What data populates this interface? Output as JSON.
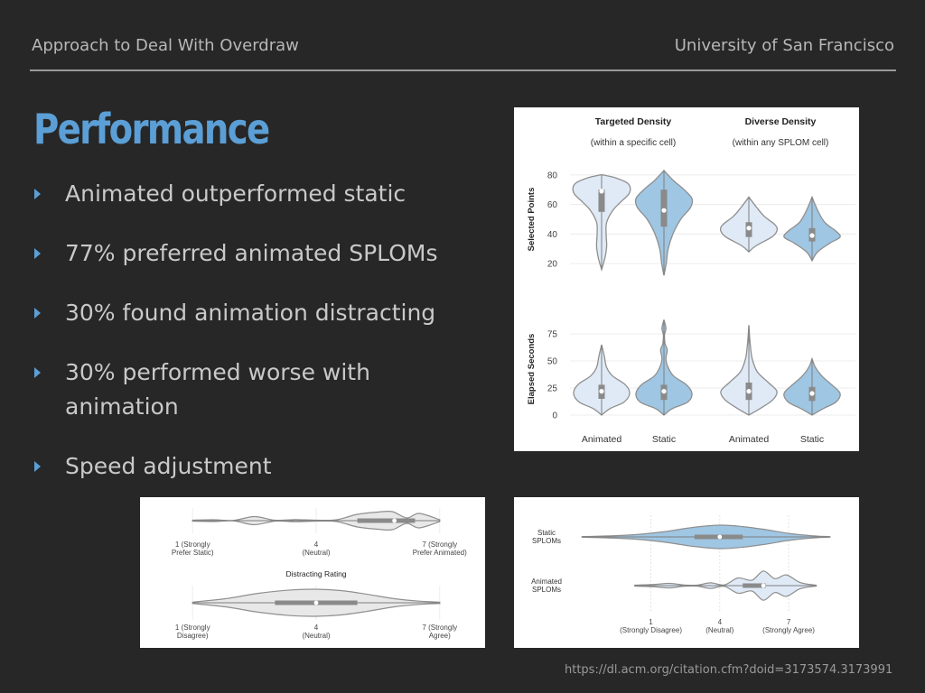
{
  "header": {
    "left": "Approach to Deal With Overdraw",
    "right": "University of San Francisco"
  },
  "title": "Performance",
  "bullets": [
    {
      "text": "Animated outperformed static"
    },
    {
      "text": "77% preferred animated SPLOMs"
    },
    {
      "text": "30% found animation distracting"
    },
    {
      "text": "30% performed worse with animation"
    },
    {
      "text": "Speed adjustment"
    }
  ],
  "citation": "https://dl.acm.org/citation.cfm?doid=3173574.3173991",
  "colors": {
    "animated": "#dfeaf6",
    "static": "#9fc6e3",
    "outline": "#8f8f8f",
    "rating": "#e8e8e8"
  },
  "chart_data": [
    {
      "type": "violin",
      "columns": [
        {
          "title": "Targeted Density",
          "subtitle": "(within a specific cell)"
        },
        {
          "title": "Diverse Density",
          "subtitle": "(within any SPLOM cell)"
        }
      ],
      "categories": [
        "Animated",
        "Static"
      ],
      "rows": [
        {
          "ylabel": "Selected Points",
          "ylim": [
            14,
            86
          ],
          "yticks": [
            20,
            40,
            60,
            80
          ],
          "groups": [
            {
              "median": 69,
              "q1": 55,
              "q3": 70,
              "min": 16,
              "max": 80,
              "profile": [
                [
                  16,
                  0
                ],
                [
                  24,
                  0.12
                ],
                [
                  32,
                  0.18
                ],
                [
                  40,
                  0.16
                ],
                [
                  48,
                  0.18
                ],
                [
                  56,
                  0.4
                ],
                [
                  62,
                  0.7
                ],
                [
                  68,
                  1.0
                ],
                [
                  74,
                  0.95
                ],
                [
                  78,
                  0.5
                ],
                [
                  80,
                  0.05
                ]
              ]
            },
            {
              "median": 56,
              "q1": 45,
              "q3": 70,
              "min": 12,
              "max": 83,
              "profile": [
                [
                  12,
                  0
                ],
                [
                  20,
                  0.08
                ],
                [
                  30,
                  0.15
                ],
                [
                  40,
                  0.32
                ],
                [
                  50,
                  0.6
                ],
                [
                  58,
                  0.95
                ],
                [
                  64,
                  1.0
                ],
                [
                  70,
                  0.72
                ],
                [
                  76,
                  0.35
                ],
                [
                  83,
                  0
                ]
              ]
            },
            {
              "median": 44,
              "q1": 38,
              "q3": 48,
              "min": 28,
              "max": 65,
              "profile": [
                [
                  28,
                  0
                ],
                [
                  32,
                  0.25
                ],
                [
                  38,
                  0.82
                ],
                [
                  42,
                  1.0
                ],
                [
                  46,
                  0.95
                ],
                [
                  52,
                  0.55
                ],
                [
                  58,
                  0.28
                ],
                [
                  65,
                  0
                ]
              ]
            },
            {
              "median": 39,
              "q1": 35,
              "q3": 44,
              "min": 22,
              "max": 65,
              "profile": [
                [
                  22,
                  0
                ],
                [
                  28,
                  0.2
                ],
                [
                  34,
                  0.65
                ],
                [
                  38,
                  1.0
                ],
                [
                  42,
                  0.85
                ],
                [
                  48,
                  0.45
                ],
                [
                  56,
                  0.2
                ],
                [
                  65,
                  0
                ]
              ]
            }
          ]
        },
        {
          "ylabel": "Elapsed Seconds",
          "ylim": [
            -5,
            90
          ],
          "yticks": [
            0,
            25,
            50,
            75
          ],
          "groups": [
            {
              "median": 22,
              "q1": 15,
              "q3": 28,
              "min": 0,
              "max": 65,
              "profile": [
                [
                  0,
                  0
                ],
                [
                  6,
                  0.3
                ],
                [
                  12,
                  0.8
                ],
                [
                  20,
                  1.0
                ],
                [
                  28,
                  0.85
                ],
                [
                  36,
                  0.4
                ],
                [
                  44,
                  0.18
                ],
                [
                  54,
                  0.1
                ],
                [
                  65,
                  0
                ]
              ]
            },
            {
              "median": 22,
              "q1": 14,
              "q3": 28,
              "min": 0,
              "max": 88,
              "profile": [
                [
                  0,
                  0
                ],
                [
                  6,
                  0.3
                ],
                [
                  12,
                  0.85
                ],
                [
                  20,
                  1.0
                ],
                [
                  28,
                  0.8
                ],
                [
                  36,
                  0.35
                ],
                [
                  44,
                  0.15
                ],
                [
                  52,
                  0.07
                ],
                [
                  60,
                  0.12
                ],
                [
                  66,
                  0.04
                ],
                [
                  74,
                  0.02
                ],
                [
                  80,
                  0.07
                ],
                [
                  88,
                  0
                ]
              ]
            },
            {
              "median": 22,
              "q1": 14,
              "q3": 30,
              "min": 0,
              "max": 83,
              "profile": [
                [
                  0,
                  0
                ],
                [
                  6,
                  0.4
                ],
                [
                  14,
                  0.85
                ],
                [
                  22,
                  1.0
                ],
                [
                  30,
                  0.7
                ],
                [
                  40,
                  0.3
                ],
                [
                  52,
                  0.12
                ],
                [
                  65,
                  0.05
                ],
                [
                  75,
                  0.02
                ],
                [
                  83,
                  0
                ]
              ]
            },
            {
              "median": 20,
              "q1": 13,
              "q3": 26,
              "min": 0,
              "max": 52,
              "profile": [
                [
                  0,
                  0
                ],
                [
                  6,
                  0.4
                ],
                [
                  12,
                  0.85
                ],
                [
                  20,
                  1.0
                ],
                [
                  28,
                  0.7
                ],
                [
                  36,
                  0.35
                ],
                [
                  44,
                  0.12
                ],
                [
                  52,
                  0
                ]
              ]
            }
          ]
        }
      ]
    },
    {
      "type": "violin",
      "orientation": "horizontal",
      "title": "Distracting Rating",
      "xlim": [
        0.6,
        7.4
      ],
      "series": [
        {
          "name": "",
          "ticks": [
            {
              "value": 1,
              "line1": "1 (Strongly",
              "line2": "Prefer Static)"
            },
            {
              "value": 4,
              "line1": "4",
              "line2": "(Neutral)"
            },
            {
              "value": 7,
              "line1": "7 (Strongly",
              "line2": "Prefer Animated)"
            }
          ],
          "median": 5.9,
          "q1": 5.0,
          "q3": 6.4,
          "min": 1,
          "max": 7,
          "profile": [
            [
              1,
              0.05
            ],
            [
              1.5,
              0.1
            ],
            [
              2,
              0.03
            ],
            [
              2.5,
              0.45
            ],
            [
              3,
              0.05
            ],
            [
              3.5,
              0.12
            ],
            [
              4,
              0.05
            ],
            [
              4.5,
              0.1
            ],
            [
              5,
              0.7
            ],
            [
              5.5,
              0.95
            ],
            [
              5.85,
              1.0
            ],
            [
              6.2,
              0.3
            ],
            [
              6.5,
              0.8
            ],
            [
              7,
              0.1
            ]
          ]
        },
        {
          "name": "Distracting Rating",
          "ticks": [
            {
              "value": 1,
              "line1": "1 (Strongly",
              "line2": "Disagree)"
            },
            {
              "value": 4,
              "line1": "4",
              "line2": "(Neutral)"
            },
            {
              "value": 7,
              "line1": "7 (Strongly",
              "line2": "Agree)"
            }
          ],
          "median": 4.0,
          "q1": 3.0,
          "q3": 5.0,
          "min": 1,
          "max": 7,
          "profile": [
            [
              1,
              0.05
            ],
            [
              1.8,
              0.3
            ],
            [
              2.6,
              0.7
            ],
            [
              3.4,
              0.95
            ],
            [
              4,
              1.0
            ],
            [
              4.6,
              0.9
            ],
            [
              5.2,
              0.65
            ],
            [
              5.9,
              0.3
            ],
            [
              6.5,
              0.12
            ],
            [
              7,
              0.05
            ]
          ]
        }
      ]
    },
    {
      "type": "violin",
      "orientation": "horizontal",
      "categories": [
        "Static SPLOMs",
        "Animated SPLOMs"
      ],
      "xlim": [
        -2.6,
        9.2
      ],
      "xticks": [
        {
          "value": 1,
          "line1": "1",
          "line2": "(Strongly Disagree)"
        },
        {
          "value": 4,
          "line1": "4",
          "line2": "(Neutral)"
        },
        {
          "value": 7,
          "line1": "7",
          "line2": "(Strongly Agree)"
        }
      ],
      "groups": [
        {
          "median": 4.0,
          "q1": 2.9,
          "q3": 5.0,
          "min": -2.0,
          "max": 8.8,
          "profile": [
            [
              -2,
              0.02
            ],
            [
              0,
              0.15
            ],
            [
              1.5,
              0.42
            ],
            [
              2.8,
              0.8
            ],
            [
              4,
              1.0
            ],
            [
              5,
              0.88
            ],
            [
              6,
              0.62
            ],
            [
              7,
              0.3
            ],
            [
              8,
              0.1
            ],
            [
              8.8,
              0.02
            ]
          ]
        },
        {
          "median": 5.9,
          "q1": 5.0,
          "q3": 6.0,
          "min": 0.3,
          "max": 8.2,
          "profile": [
            [
              0.3,
              0.03
            ],
            [
              1.2,
              0.08
            ],
            [
              1.8,
              0.15
            ],
            [
              2.4,
              0.05
            ],
            [
              3,
              0.03
            ],
            [
              3.6,
              0.18
            ],
            [
              4.2,
              0.05
            ],
            [
              4.8,
              0.5
            ],
            [
              5.4,
              0.35
            ],
            [
              5.9,
              0.95
            ],
            [
              6.4,
              0.45
            ],
            [
              6.9,
              0.7
            ],
            [
              7.5,
              0.2
            ],
            [
              8.2,
              0.03
            ]
          ]
        }
      ]
    }
  ]
}
